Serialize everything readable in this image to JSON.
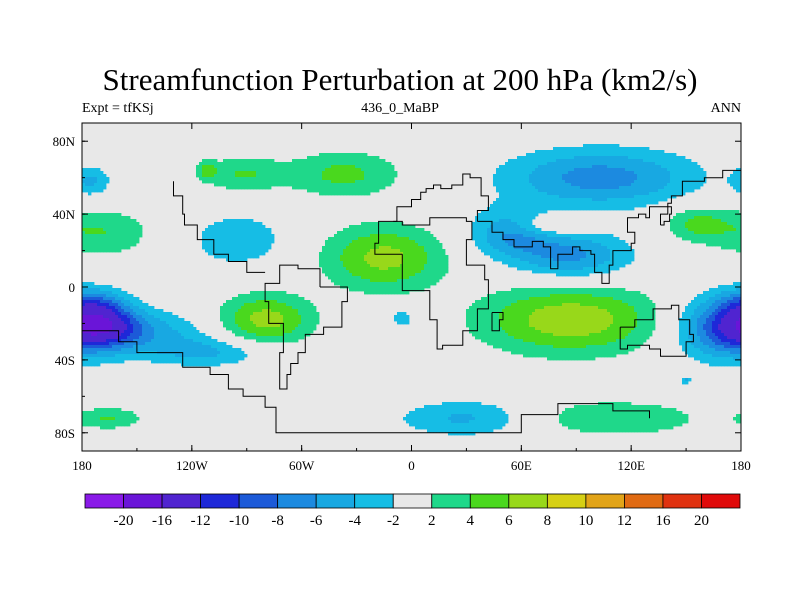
{
  "title": "Streamfunction Perturbation at 200 hPa (km2/s)",
  "subtitle_left": "Expt = tfKSj",
  "subtitle_center": "436_0_MaBP",
  "subtitle_right": "ANN",
  "colors": {
    "background": "#e8e8e8",
    "coastline": "#000000",
    "frame": "#000000"
  },
  "chart_data": {
    "type": "heatmap",
    "title": "Streamfunction Perturbation at 200 hPa (km2/s)",
    "units": "km2/s",
    "x_range": [
      -180,
      180
    ],
    "y_range": [
      -90,
      90
    ],
    "x_ticks": [
      {
        "value": -180,
        "label": "180"
      },
      {
        "value": -120,
        "label": "120W"
      },
      {
        "value": -60,
        "label": "60W"
      },
      {
        "value": 0,
        "label": "0"
      },
      {
        "value": 60,
        "label": "60E"
      },
      {
        "value": 120,
        "label": "120E"
      },
      {
        "value": 180,
        "label": "180"
      }
    ],
    "y_ticks": [
      {
        "value": 80,
        "label": "80N"
      },
      {
        "value": 40,
        "label": "40N"
      },
      {
        "value": 0,
        "label": "0"
      },
      {
        "value": -40,
        "label": "40S"
      },
      {
        "value": -80,
        "label": "80S"
      }
    ],
    "colorbar": {
      "levels": [
        "-20",
        "-16",
        "-12",
        "-10",
        "-8",
        "-6",
        "-4",
        "-2",
        "2",
        "4",
        "6",
        "8",
        "10",
        "12",
        "16",
        "20"
      ],
      "colors": [
        "#8a1ae8",
        "#6a15d8",
        "#5024d0",
        "#1e28d8",
        "#1c5ad8",
        "#1c8ae0",
        "#18a8e2",
        "#16bde5",
        "#e8e8e8",
        "#1fd88a",
        "#4ad81e",
        "#98d81a",
        "#d6d014",
        "#e2a418",
        "#e06a12",
        "#e03210",
        "#e00a0a"
      ]
    },
    "field_blobs": [
      {
        "lon": -170,
        "lat": -20,
        "rlon": 20,
        "rlat": 12,
        "amp": -10
      },
      {
        "lon": -175,
        "lat": -8,
        "rlon": 16,
        "rlat": 8,
        "amp": -4
      },
      {
        "lon": -150,
        "lat": -25,
        "rlon": 40,
        "rlat": 12,
        "amp": -5
      },
      {
        "lon": -110,
        "lat": -36,
        "rlon": 32,
        "rlat": 8,
        "amp": -4
      },
      {
        "lon": -170,
        "lat": 30,
        "rlon": 28,
        "rlat": 14,
        "amp": 4
      },
      {
        "lon": -175,
        "lat": 58,
        "rlon": 10,
        "rlat": 8,
        "amp": -4
      },
      {
        "lon": -165,
        "lat": -72,
        "rlon": 18,
        "rlat": 6,
        "amp": 4
      },
      {
        "lon": -93,
        "lat": 62,
        "rlon": 22,
        "rlat": 10,
        "amp": 4
      },
      {
        "lon": -95,
        "lat": 26,
        "rlon": 25,
        "rlat": 14,
        "amp": -4
      },
      {
        "lon": -80,
        "lat": -18,
        "rlon": 26,
        "rlat": 14,
        "amp": 7
      },
      {
        "lon": -37,
        "lat": 62,
        "rlon": 32,
        "rlat": 13,
        "amp": 4.6
      },
      {
        "lon": -15,
        "lat": 16,
        "rlon": 33,
        "rlat": 18,
        "amp": 6.7
      },
      {
        "lon": -5,
        "lat": -17,
        "rlon": 6,
        "rlat": 5,
        "amp": -4
      },
      {
        "lon": 55,
        "lat": 30,
        "rlon": 23,
        "rlat": 13,
        "amp": -6
      },
      {
        "lon": 88,
        "lat": 17,
        "rlon": 32,
        "rlat": 13,
        "amp": -6.5
      },
      {
        "lon": 103,
        "lat": 60,
        "rlon": 52,
        "rlat": 16,
        "amp": -7
      },
      {
        "lon": 87,
        "lat": -18,
        "rlon": 50,
        "rlat": 19,
        "amp": 7.5
      },
      {
        "lon": 30,
        "lat": -72,
        "rlon": 38,
        "rlat": 10,
        "amp": -4.5
      },
      {
        "lon": 110,
        "lat": -72,
        "rlon": 50,
        "rlat": 10,
        "amp": 4
      },
      {
        "lon": 170,
        "lat": -22,
        "rlon": 26,
        "rlat": 18,
        "amp": -8
      },
      {
        "lon": 155,
        "lat": 35,
        "rlon": 18,
        "rlat": 10,
        "amp": 4.3
      },
      {
        "lon": 75,
        "lat": 34,
        "rlon": 20,
        "rlat": 6,
        "amp": 4
      },
      {
        "lon": 150,
        "lat": -51,
        "rlon": 3,
        "rlat": 2,
        "amp": -4
      },
      {
        "lon": -112,
        "lat": 64,
        "rlon": 5,
        "rlat": 5,
        "amp": 4
      }
    ],
    "coastlines": [
      [
        [
          -180,
          -24
        ],
        [
          -160,
          -24
        ],
        [
          -160,
          -30
        ],
        [
          -150,
          -30
        ],
        [
          -150,
          -36
        ],
        [
          -130,
          -36
        ],
        [
          -125,
          -44
        ],
        [
          -110,
          -48
        ],
        [
          -100,
          -56
        ],
        [
          -92,
          -60
        ],
        [
          -80,
          -66
        ],
        [
          -74,
          -72
        ],
        [
          -74,
          -80
        ],
        [
          -40,
          -80
        ],
        [
          0,
          -80
        ],
        [
          30,
          -80
        ],
        [
          60,
          -70
        ],
        [
          80,
          -64
        ],
        [
          100,
          -64
        ],
        [
          110,
          -68
        ],
        [
          130,
          -68
        ],
        [
          130,
          -72
        ]
      ],
      [
        [
          -5,
          18
        ],
        [
          -20,
          24
        ],
        [
          -18,
          36
        ],
        [
          -5,
          34
        ],
        [
          10,
          38
        ],
        [
          30,
          36
        ],
        [
          33,
          26
        ],
        [
          30,
          12
        ],
        [
          40,
          4
        ],
        [
          42,
          -12
        ],
        [
          36,
          -24
        ],
        [
          28,
          -32
        ],
        [
          17,
          -34
        ],
        [
          14,
          -18
        ],
        [
          10,
          -2
        ],
        [
          -5,
          4
        ],
        [
          -5,
          18
        ]
      ],
      [
        [
          -50,
          0
        ],
        [
          -35,
          -8
        ],
        [
          -38,
          -22
        ],
        [
          -48,
          -26
        ],
        [
          -58,
          -36
        ],
        [
          -62,
          -42
        ],
        [
          -66,
          -48
        ],
        [
          -68,
          -56
        ],
        [
          -72,
          -52
        ],
        [
          -72,
          -36
        ],
        [
          -70,
          -20
        ],
        [
          -78,
          -8
        ],
        [
          -80,
          2
        ],
        [
          -72,
          12
        ],
        [
          -62,
          10
        ],
        [
          -50,
          0
        ]
      ],
      [
        [
          -80,
          8
        ],
        [
          -90,
          14
        ],
        [
          -100,
          18
        ],
        [
          -108,
          26
        ],
        [
          -117,
          34
        ],
        [
          -124,
          40
        ],
        [
          -125,
          50
        ],
        [
          -130,
          58
        ]
      ],
      [
        [
          -10,
          36
        ],
        [
          -8,
          44
        ],
        [
          0,
          48
        ],
        [
          5,
          52
        ],
        [
          8,
          54
        ],
        [
          12,
          56
        ],
        [
          16,
          54
        ],
        [
          22,
          56
        ],
        [
          28,
          62
        ],
        [
          32,
          60
        ],
        [
          38,
          50
        ],
        [
          42,
          42
        ],
        [
          36,
          36
        ]
      ],
      [
        [
          36,
          36
        ],
        [
          44,
          30
        ],
        [
          50,
          26
        ],
        [
          56,
          22
        ],
        [
          60,
          22
        ],
        [
          66,
          25
        ],
        [
          72,
          22
        ],
        [
          76,
          10
        ],
        [
          80,
          18
        ],
        [
          88,
          22
        ],
        [
          92,
          20
        ],
        [
          98,
          18
        ],
        [
          100,
          8
        ],
        [
          104,
          2
        ],
        [
          108,
          12
        ],
        [
          110,
          20
        ],
        [
          120,
          24
        ],
        [
          122,
          30
        ],
        [
          118,
          38
        ],
        [
          124,
          40
        ],
        [
          128,
          38
        ],
        [
          130,
          44
        ],
        [
          140,
          46
        ],
        [
          142,
          50
        ],
        [
          148,
          58
        ],
        [
          160,
          60
        ],
        [
          170,
          64
        ],
        [
          180,
          66
        ]
      ],
      [
        [
          114,
          -22
        ],
        [
          122,
          -18
        ],
        [
          132,
          -12
        ],
        [
          142,
          -10
        ],
        [
          146,
          -18
        ],
        [
          152,
          -26
        ],
        [
          154,
          -30
        ],
        [
          150,
          -38
        ],
        [
          144,
          -38
        ],
        [
          136,
          -34
        ],
        [
          130,
          -32
        ],
        [
          118,
          -34
        ],
        [
          114,
          -28
        ],
        [
          114,
          -22
        ]
      ],
      [
        [
          44,
          -14
        ],
        [
          48,
          -14
        ],
        [
          50,
          -18
        ],
        [
          48,
          -24
        ],
        [
          44,
          -24
        ],
        [
          44,
          -14
        ]
      ],
      [
        [
          136,
          34
        ],
        [
          138,
          36
        ],
        [
          141,
          40
        ],
        [
          142,
          44
        ],
        [
          140,
          40
        ],
        [
          136,
          34
        ]
      ]
    ]
  }
}
